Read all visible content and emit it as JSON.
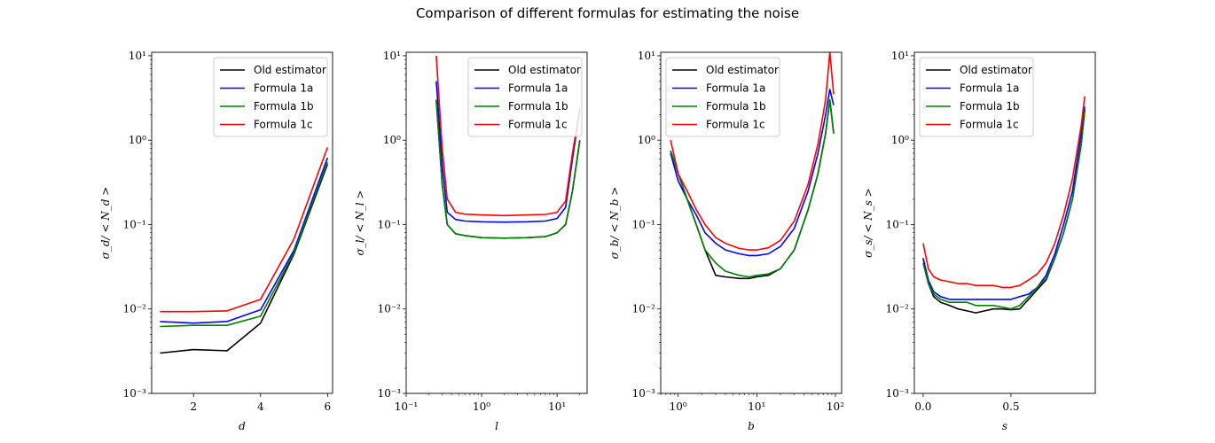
{
  "figure": {
    "title": "Comparison of different formulas for estimating the noise"
  },
  "colors": {
    "Old estimator": "#000000",
    "Formula 1a": "#0000ff",
    "Formula 1b": "#008000",
    "Formula 1c": "#ff0000"
  },
  "chart_data": [
    {
      "type": "line",
      "xlabel": "d",
      "ylabel": "σ_d/ < N_d >",
      "xscale": "linear",
      "yscale": "log",
      "xlim": [
        0.75,
        6.15
      ],
      "ylim": [
        0.001,
        11
      ],
      "xticks": [
        2,
        4,
        6
      ],
      "xtick_labels": [
        "2",
        "4",
        "6"
      ],
      "legend": "upper right",
      "series": [
        {
          "name": "Old estimator",
          "x": [
            1,
            2,
            3,
            4,
            5,
            6
          ],
          "y": [
            0.003,
            0.0033,
            0.0032,
            0.0068,
            0.045,
            0.52
          ]
        },
        {
          "name": "Formula 1a",
          "x": [
            1,
            2,
            3,
            4,
            5,
            6
          ],
          "y": [
            0.0071,
            0.0068,
            0.0071,
            0.0098,
            0.05,
            0.62
          ]
        },
        {
          "name": "Formula 1b",
          "x": [
            1,
            2,
            3,
            4,
            5,
            6
          ],
          "y": [
            0.0062,
            0.0064,
            0.0064,
            0.0082,
            0.047,
            0.55
          ]
        },
        {
          "name": "Formula 1c",
          "x": [
            1,
            2,
            3,
            4,
            5,
            6
          ],
          "y": [
            0.0093,
            0.0093,
            0.0095,
            0.013,
            0.068,
            0.82
          ]
        }
      ]
    },
    {
      "type": "line",
      "xlabel": "l",
      "ylabel": "σ_l/ < N_l >",
      "xscale": "log",
      "yscale": "log",
      "xlim": [
        0.1,
        25
      ],
      "ylim": [
        0.001,
        11
      ],
      "xticks": [
        0.1,
        1,
        10
      ],
      "xtick_labels": [
        "10⁻¹",
        "10⁰",
        "10¹"
      ],
      "legend": "upper right",
      "series": [
        {
          "name": "Old estimator",
          "x": [
            0.25,
            0.3,
            0.35,
            0.45,
            0.6,
            1,
            2,
            4,
            7,
            10,
            13,
            16,
            20
          ],
          "y": [
            3,
            0.3,
            0.1,
            0.078,
            0.074,
            0.07,
            0.069,
            0.07,
            0.072,
            0.08,
            0.1,
            0.25,
            1.0
          ]
        },
        {
          "name": "Formula 1a",
          "x": [
            0.25,
            0.3,
            0.35,
            0.45,
            0.6,
            1,
            2,
            4,
            7,
            10,
            13,
            16,
            20
          ],
          "y": [
            5,
            0.5,
            0.14,
            0.115,
            0.11,
            0.108,
            0.107,
            0.108,
            0.11,
            0.118,
            0.16,
            0.6,
            2.3
          ]
        },
        {
          "name": "Formula 1b",
          "x": [
            0.25,
            0.3,
            0.35,
            0.45,
            0.6,
            1,
            2,
            4,
            7,
            10,
            13,
            16,
            20
          ],
          "y": [
            3,
            0.3,
            0.1,
            0.078,
            0.074,
            0.07,
            0.069,
            0.07,
            0.072,
            0.08,
            0.1,
            0.25,
            1.0
          ]
        },
        {
          "name": "Formula 1c",
          "x": [
            0.25,
            0.3,
            0.35,
            0.45,
            0.6,
            1,
            2,
            4,
            7,
            10,
            13,
            16,
            20
          ],
          "y": [
            10,
            0.8,
            0.2,
            0.14,
            0.133,
            0.13,
            0.128,
            0.13,
            0.132,
            0.14,
            0.19,
            0.7,
            2.4
          ]
        }
      ]
    },
    {
      "type": "line",
      "xlabel": "b",
      "ylabel": "σ_b/ < N_b >",
      "xscale": "log",
      "yscale": "log",
      "xlim": [
        0.6,
        120
      ],
      "ylim": [
        0.001,
        11
      ],
      "xticks": [
        1,
        10,
        100
      ],
      "xtick_labels": [
        "10⁰",
        "10¹",
        "10²"
      ],
      "legend": "upper left",
      "series": [
        {
          "name": "Old estimator",
          "x": [
            0.8,
            1,
            1.3,
            1.7,
            2.2,
            3,
            4,
            6,
            8,
            10,
            14,
            20,
            30,
            45,
            60,
            75,
            85,
            95
          ],
          "y": [
            0.75,
            0.4,
            0.2,
            0.1,
            0.05,
            0.025,
            0.024,
            0.023,
            0.023,
            0.024,
            0.025,
            0.03,
            0.05,
            0.15,
            0.4,
            1.2,
            3,
            1.2
          ]
        },
        {
          "name": "Formula 1a",
          "x": [
            0.8,
            1,
            1.3,
            1.7,
            2.2,
            3,
            4,
            6,
            8,
            10,
            14,
            20,
            30,
            45,
            60,
            75,
            85,
            95
          ],
          "y": [
            0.7,
            0.33,
            0.2,
            0.13,
            0.08,
            0.06,
            0.05,
            0.045,
            0.043,
            0.043,
            0.045,
            0.055,
            0.09,
            0.25,
            0.7,
            2,
            4,
            2.6
          ]
        },
        {
          "name": "Formula 1b",
          "x": [
            0.8,
            1,
            1.3,
            1.7,
            2.2,
            3,
            4,
            6,
            8,
            10,
            14,
            20,
            30,
            45,
            60,
            75,
            85,
            95
          ],
          "y": [
            0.75,
            0.4,
            0.2,
            0.1,
            0.05,
            0.035,
            0.028,
            0.025,
            0.024,
            0.025,
            0.026,
            0.03,
            0.05,
            0.15,
            0.4,
            1.2,
            3,
            1.2
          ]
        },
        {
          "name": "Formula 1c",
          "x": [
            0.8,
            1,
            1.3,
            1.7,
            2.2,
            3,
            4,
            6,
            8,
            10,
            14,
            20,
            30,
            45,
            60,
            75,
            85,
            95
          ],
          "y": [
            1.0,
            0.4,
            0.25,
            0.15,
            0.1,
            0.07,
            0.06,
            0.052,
            0.05,
            0.05,
            0.053,
            0.065,
            0.11,
            0.3,
            0.9,
            3,
            11,
            3.5
          ]
        }
      ]
    },
    {
      "type": "line",
      "xlabel": "s",
      "ylabel": "σ_s/ < N_s >",
      "xscale": "linear",
      "yscale": "log",
      "xlim": [
        -0.05,
        0.98
      ],
      "ylim": [
        0.001,
        11
      ],
      "xticks": [
        0.0,
        0.5
      ],
      "xtick_labels": [
        "0.0",
        "0.5"
      ],
      "legend": "upper left",
      "series": [
        {
          "name": "Old estimator",
          "x": [
            0,
            0.03,
            0.06,
            0.1,
            0.15,
            0.2,
            0.25,
            0.3,
            0.35,
            0.4,
            0.45,
            0.5,
            0.55,
            0.6,
            0.65,
            0.7,
            0.75,
            0.8,
            0.85,
            0.9,
            0.92
          ],
          "y": [
            0.04,
            0.02,
            0.014,
            0.012,
            0.011,
            0.01,
            0.0095,
            0.009,
            0.0095,
            0.01,
            0.01,
            0.0098,
            0.01,
            0.013,
            0.017,
            0.022,
            0.04,
            0.08,
            0.2,
            0.9,
            2.3
          ]
        },
        {
          "name": "Formula 1a",
          "x": [
            0,
            0.03,
            0.06,
            0.1,
            0.15,
            0.2,
            0.25,
            0.3,
            0.35,
            0.4,
            0.45,
            0.5,
            0.55,
            0.6,
            0.65,
            0.7,
            0.75,
            0.8,
            0.85,
            0.9,
            0.92
          ],
          "y": [
            0.04,
            0.022,
            0.016,
            0.014,
            0.013,
            0.013,
            0.013,
            0.013,
            0.013,
            0.013,
            0.013,
            0.013,
            0.014,
            0.015,
            0.018,
            0.025,
            0.045,
            0.1,
            0.25,
            1.2,
            2.5
          ]
        },
        {
          "name": "Formula 1b",
          "x": [
            0,
            0.03,
            0.06,
            0.1,
            0.15,
            0.2,
            0.25,
            0.3,
            0.35,
            0.4,
            0.45,
            0.5,
            0.55,
            0.6,
            0.65,
            0.7,
            0.75,
            0.8,
            0.85,
            0.9,
            0.92
          ],
          "y": [
            0.035,
            0.02,
            0.015,
            0.013,
            0.012,
            0.012,
            0.012,
            0.011,
            0.011,
            0.011,
            0.0105,
            0.01,
            0.011,
            0.014,
            0.018,
            0.023,
            0.04,
            0.08,
            0.2,
            0.9,
            2.2
          ]
        },
        {
          "name": "Formula 1c",
          "x": [
            0,
            0.03,
            0.06,
            0.1,
            0.15,
            0.2,
            0.25,
            0.3,
            0.35,
            0.4,
            0.45,
            0.5,
            0.55,
            0.6,
            0.65,
            0.7,
            0.75,
            0.8,
            0.85,
            0.9,
            0.92
          ],
          "y": [
            0.06,
            0.03,
            0.024,
            0.022,
            0.021,
            0.02,
            0.02,
            0.019,
            0.019,
            0.019,
            0.018,
            0.018,
            0.019,
            0.022,
            0.026,
            0.035,
            0.06,
            0.13,
            0.35,
            1.5,
            3.3
          ]
        }
      ]
    }
  ]
}
